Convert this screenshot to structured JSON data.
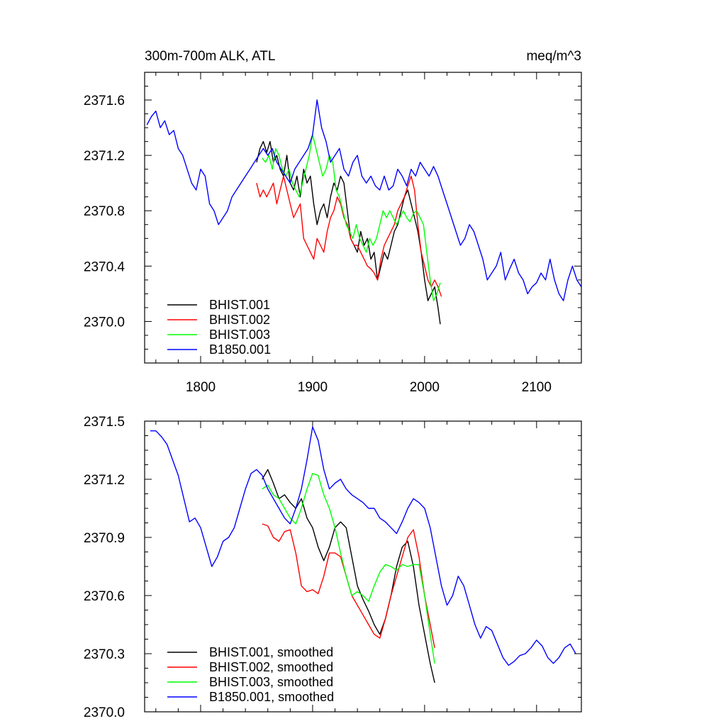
{
  "chart_data": [
    {
      "type": "line",
      "title": "300m-700m ALK, ATL",
      "subtitle": "meq/m^3",
      "xlim": [
        1750,
        2140
      ],
      "ylim": [
        2369.7,
        2371.8
      ],
      "x_ticks": [
        1800,
        1900,
        2000,
        2100
      ],
      "y_ticks": [
        2370.0,
        2370.4,
        2370.8,
        2371.2,
        2371.6
      ],
      "y_tick_labels": [
        "2370.0",
        "2370.4",
        "2370.8",
        "2371.2",
        "2371.6"
      ],
      "x_tick_labels": [
        "1800",
        "1900",
        "2000",
        "2100"
      ],
      "legend_position": "bottom-left",
      "grid": false,
      "series": [
        {
          "name": "BHIST.001",
          "color": "#000000",
          "x": [
            1850,
            1853,
            1856,
            1859,
            1862,
            1865,
            1868,
            1871,
            1874,
            1877,
            1880,
            1883,
            1886,
            1889,
            1892,
            1895,
            1898,
            1901,
            1904,
            1907,
            1910,
            1913,
            1916,
            1919,
            1922,
            1925,
            1928,
            1931,
            1934,
            1937,
            1940,
            1943,
            1946,
            1949,
            1952,
            1955,
            1958,
            1961,
            1964,
            1967,
            1970,
            1973,
            1976,
            1979,
            1982,
            1985,
            1988,
            1991,
            1994,
            1997,
            2000,
            2003,
            2006,
            2009,
            2012,
            2014
          ],
          "y": [
            2371.15,
            2371.25,
            2371.3,
            2371.22,
            2371.3,
            2371.15,
            2371.2,
            2371.1,
            2371.05,
            2371.2,
            2371.0,
            2370.95,
            2371.05,
            2370.9,
            2371.1,
            2371.0,
            2371.05,
            2370.85,
            2370.7,
            2370.8,
            2370.85,
            2370.75,
            2370.9,
            2371.0,
            2370.95,
            2371.05,
            2371.0,
            2370.8,
            2370.6,
            2370.55,
            2370.5,
            2370.65,
            2370.55,
            2370.6,
            2370.45,
            2370.5,
            2370.3,
            2370.4,
            2370.5,
            2370.45,
            2370.55,
            2370.65,
            2370.7,
            2370.8,
            2370.9,
            2370.95,
            2370.85,
            2370.75,
            2370.65,
            2370.5,
            2370.3,
            2370.15,
            2370.2,
            2370.25,
            2370.1,
            2369.98
          ]
        },
        {
          "name": "BHIST.002",
          "color": "#ff0000",
          "x": [
            1850,
            1853,
            1856,
            1859,
            1862,
            1865,
            1868,
            1871,
            1874,
            1877,
            1880,
            1883,
            1886,
            1889,
            1892,
            1895,
            1898,
            1901,
            1904,
            1907,
            1910,
            1913,
            1916,
            1919,
            1922,
            1925,
            1928,
            1931,
            1934,
            1937,
            1940,
            1943,
            1946,
            1949,
            1952,
            1955,
            1958,
            1961,
            1964,
            1967,
            1970,
            1973,
            1976,
            1979,
            1982,
            1985,
            1988,
            1991,
            1994,
            1997,
            2000,
            2003,
            2006,
            2009,
            2012,
            2015
          ],
          "y": [
            2371.0,
            2370.9,
            2370.95,
            2370.9,
            2370.95,
            2371.0,
            2370.85,
            2370.95,
            2371.05,
            2370.95,
            2370.85,
            2370.75,
            2370.8,
            2370.85,
            2370.6,
            2370.55,
            2370.5,
            2370.45,
            2370.6,
            2370.55,
            2370.5,
            2370.65,
            2370.75,
            2370.8,
            2370.9,
            2370.85,
            2370.75,
            2370.7,
            2370.6,
            2370.55,
            2370.55,
            2370.5,
            2370.45,
            2370.4,
            2370.38,
            2370.35,
            2370.3,
            2370.45,
            2370.55,
            2370.6,
            2370.65,
            2370.7,
            2370.8,
            2370.85,
            2370.9,
            2370.98,
            2371.05,
            2370.95,
            2370.7,
            2370.5,
            2370.4,
            2370.3,
            2370.25,
            2370.3,
            2370.25,
            2370.18
          ]
        },
        {
          "name": "BHIST.003",
          "color": "#00ff00",
          "x": [
            1855,
            1858,
            1861,
            1864,
            1867,
            1870,
            1873,
            1876,
            1879,
            1882,
            1885,
            1888,
            1891,
            1894,
            1897,
            1900,
            1903,
            1906,
            1909,
            1912,
            1915,
            1918,
            1921,
            1924,
            1927,
            1930,
            1933,
            1936,
            1939,
            1942,
            1945,
            1948,
            1951,
            1954,
            1957,
            1960,
            1963,
            1966,
            1969,
            1972,
            1975,
            1978,
            1981,
            1984,
            1987,
            1990,
            1993,
            1996,
            1999,
            2002,
            2005,
            2008,
            2011,
            2014
          ],
          "y": [
            2371.18,
            2371.15,
            2371.2,
            2371.1,
            2371.25,
            2371.2,
            2371.1,
            2371.05,
            2371.1,
            2371.0,
            2370.95,
            2370.9,
            2371.0,
            2371.1,
            2371.2,
            2371.35,
            2371.25,
            2371.15,
            2371.05,
            2371.1,
            2371.2,
            2371.15,
            2370.95,
            2370.9,
            2370.8,
            2370.7,
            2370.65,
            2370.6,
            2370.7,
            2370.6,
            2370.55,
            2370.5,
            2370.6,
            2370.55,
            2370.6,
            2370.7,
            2370.8,
            2370.75,
            2370.8,
            2370.75,
            2370.7,
            2370.75,
            2370.8,
            2370.75,
            2370.72,
            2370.78,
            2370.8,
            2370.75,
            2370.7,
            2370.5,
            2370.3,
            2370.15,
            2370.2,
            2370.28
          ]
        },
        {
          "name": "B1850.001",
          "color": "#0000ff",
          "x": [
            1752,
            1756,
            1760,
            1764,
            1768,
            1772,
            1776,
            1780,
            1784,
            1788,
            1792,
            1796,
            1800,
            1804,
            1808,
            1812,
            1816,
            1820,
            1824,
            1828,
            1832,
            1836,
            1840,
            1844,
            1848,
            1852,
            1856,
            1860,
            1864,
            1868,
            1872,
            1876,
            1880,
            1884,
            1888,
            1892,
            1896,
            1900,
            1904,
            1908,
            1912,
            1916,
            1920,
            1924,
            1928,
            1932,
            1936,
            1940,
            1944,
            1948,
            1952,
            1956,
            1960,
            1964,
            1968,
            1972,
            1976,
            1980,
            1984,
            1988,
            1992,
            1996,
            2000,
            2004,
            2008,
            2012,
            2016,
            2020,
            2024,
            2028,
            2032,
            2036,
            2040,
            2044,
            2048,
            2052,
            2056,
            2060,
            2064,
            2068,
            2072,
            2076,
            2080,
            2084,
            2088,
            2092,
            2096,
            2100,
            2104,
            2108,
            2112,
            2116,
            2120,
            2124,
            2128,
            2132,
            2136,
            2140
          ],
          "y": [
            2371.42,
            2371.48,
            2371.52,
            2371.4,
            2371.45,
            2371.35,
            2371.38,
            2371.25,
            2371.2,
            2371.1,
            2371.0,
            2370.95,
            2371.1,
            2371.05,
            2370.85,
            2370.8,
            2370.7,
            2370.75,
            2370.8,
            2370.9,
            2370.95,
            2371.0,
            2371.05,
            2371.1,
            2371.15,
            2371.2,
            2371.25,
            2371.2,
            2371.25,
            2371.15,
            2371.1,
            2371.05,
            2371.0,
            2371.1,
            2371.15,
            2371.2,
            2371.25,
            2371.35,
            2371.6,
            2371.4,
            2371.3,
            2371.15,
            2371.2,
            2371.25,
            2371.1,
            2371.05,
            2371.15,
            2371.2,
            2371.05,
            2371.0,
            2371.05,
            2370.98,
            2370.95,
            2371.05,
            2370.95,
            2370.98,
            2371.1,
            2371.05,
            2370.98,
            2371.1,
            2371.05,
            2371.15,
            2371.1,
            2371.05,
            2371.12,
            2371.05,
            2370.95,
            2370.85,
            2370.75,
            2370.65,
            2370.55,
            2370.6,
            2370.7,
            2370.65,
            2370.55,
            2370.45,
            2370.3,
            2370.35,
            2370.4,
            2370.5,
            2370.3,
            2370.38,
            2370.45,
            2370.35,
            2370.3,
            2370.2,
            2370.25,
            2370.28,
            2370.35,
            2370.3,
            2370.45,
            2370.3,
            2370.2,
            2370.15,
            2370.3,
            2370.4,
            2370.3,
            2370.25
          ]
        }
      ]
    },
    {
      "type": "line",
      "xlim": [
        1750,
        2140
      ],
      "ylim": [
        2370.0,
        2371.5
      ],
      "x_ticks": [
        1800,
        1900,
        2000,
        2100
      ],
      "y_ticks": [
        2370.0,
        2370.3,
        2370.6,
        2370.9,
        2371.2,
        2371.5
      ],
      "y_tick_labels": [
        "2370.0",
        "2370.3",
        "2370.6",
        "2370.9",
        "2371.2",
        "2371.5"
      ],
      "legend_position": "bottom-left",
      "grid": false,
      "series": [
        {
          "name": "BHIST.001, smoothed",
          "color": "#000000",
          "x": [
            1855,
            1860,
            1865,
            1870,
            1875,
            1880,
            1885,
            1890,
            1895,
            1900,
            1905,
            1910,
            1915,
            1920,
            1925,
            1930,
            1935,
            1940,
            1945,
            1950,
            1955,
            1960,
            1965,
            1970,
            1975,
            1980,
            1985,
            1990,
            1995,
            2000,
            2005,
            2009
          ],
          "y": [
            2371.2,
            2371.25,
            2371.18,
            2371.1,
            2371.12,
            2371.08,
            2371.05,
            2371.1,
            2371.0,
            2370.95,
            2370.85,
            2370.78,
            2370.85,
            2370.95,
            2370.98,
            2370.95,
            2370.8,
            2370.65,
            2370.58,
            2370.52,
            2370.45,
            2370.4,
            2370.48,
            2370.6,
            2370.75,
            2370.85,
            2370.88,
            2370.75,
            2370.55,
            2370.4,
            2370.25,
            2370.15
          ]
        },
        {
          "name": "BHIST.002, smoothed",
          "color": "#ff0000",
          "x": [
            1855,
            1860,
            1865,
            1870,
            1875,
            1880,
            1885,
            1890,
            1895,
            1900,
            1905,
            1910,
            1915,
            1920,
            1925,
            1930,
            1935,
            1940,
            1945,
            1950,
            1955,
            1960,
            1965,
            1970,
            1975,
            1980,
            1985,
            1990,
            1995,
            2000,
            2005,
            2009
          ],
          "y": [
            2370.97,
            2370.96,
            2370.9,
            2370.88,
            2370.93,
            2370.94,
            2370.82,
            2370.65,
            2370.62,
            2370.63,
            2370.61,
            2370.7,
            2370.82,
            2370.82,
            2370.8,
            2370.7,
            2370.6,
            2370.55,
            2370.5,
            2370.45,
            2370.4,
            2370.38,
            2370.48,
            2370.6,
            2370.7,
            2370.8,
            2370.9,
            2370.94,
            2370.8,
            2370.6,
            2370.45,
            2370.33
          ]
        },
        {
          "name": "BHIST.003, smoothed",
          "color": "#00ff00",
          "x": [
            1855,
            1860,
            1865,
            1870,
            1875,
            1880,
            1885,
            1890,
            1895,
            1900,
            1905,
            1910,
            1915,
            1920,
            1925,
            1930,
            1935,
            1940,
            1945,
            1950,
            1955,
            1960,
            1965,
            1970,
            1975,
            1980,
            1985,
            1990,
            1995,
            2000,
            2005,
            2009
          ],
          "y": [
            2371.15,
            2371.17,
            2371.12,
            2371.1,
            2371.05,
            2371.0,
            2370.97,
            2371.05,
            2371.15,
            2371.23,
            2371.22,
            2371.12,
            2371.05,
            2370.95,
            2370.82,
            2370.7,
            2370.6,
            2370.62,
            2370.6,
            2370.57,
            2370.65,
            2370.72,
            2370.76,
            2370.75,
            2370.73,
            2370.76,
            2370.75,
            2370.76,
            2370.76,
            2370.6,
            2370.4,
            2370.25
          ]
        },
        {
          "name": "B1850.001, smoothed",
          "color": "#0000ff",
          "x": [
            1755,
            1760,
            1765,
            1770,
            1775,
            1780,
            1785,
            1790,
            1795,
            1800,
            1805,
            1810,
            1815,
            1820,
            1825,
            1830,
            1835,
            1840,
            1845,
            1850,
            1855,
            1860,
            1865,
            1870,
            1875,
            1880,
            1885,
            1890,
            1895,
            1900,
            1905,
            1910,
            1915,
            1920,
            1925,
            1930,
            1935,
            1940,
            1945,
            1950,
            1955,
            1960,
            1965,
            1970,
            1975,
            1980,
            1985,
            1990,
            1995,
            2000,
            2005,
            2010,
            2015,
            2020,
            2025,
            2030,
            2035,
            2040,
            2045,
            2050,
            2055,
            2060,
            2065,
            2070,
            2075,
            2080,
            2085,
            2090,
            2095,
            2100,
            2105,
            2110,
            2115,
            2120,
            2125,
            2130,
            2135
          ],
          "y": [
            2371.45,
            2371.45,
            2371.42,
            2371.38,
            2371.3,
            2371.22,
            2371.1,
            2370.98,
            2371.0,
            2370.95,
            2370.85,
            2370.75,
            2370.8,
            2370.88,
            2370.9,
            2370.95,
            2371.05,
            2371.15,
            2371.23,
            2371.25,
            2371.22,
            2371.15,
            2371.1,
            2371.05,
            2371.0,
            2370.97,
            2371.05,
            2371.15,
            2371.3,
            2371.47,
            2371.4,
            2371.25,
            2371.15,
            2371.18,
            2371.2,
            2371.15,
            2371.12,
            2371.1,
            2371.08,
            2371.05,
            2371.05,
            2371.0,
            2370.98,
            2370.95,
            2370.92,
            2370.98,
            2371.05,
            2371.1,
            2371.08,
            2371.05,
            2370.95,
            2370.8,
            2370.65,
            2370.55,
            2370.6,
            2370.7,
            2370.65,
            2370.55,
            2370.45,
            2370.38,
            2370.44,
            2370.42,
            2370.35,
            2370.28,
            2370.24,
            2370.26,
            2370.29,
            2370.3,
            2370.33,
            2370.37,
            2370.34,
            2370.28,
            2370.25,
            2370.28,
            2370.33,
            2370.35,
            2370.3
          ]
        }
      ]
    }
  ]
}
